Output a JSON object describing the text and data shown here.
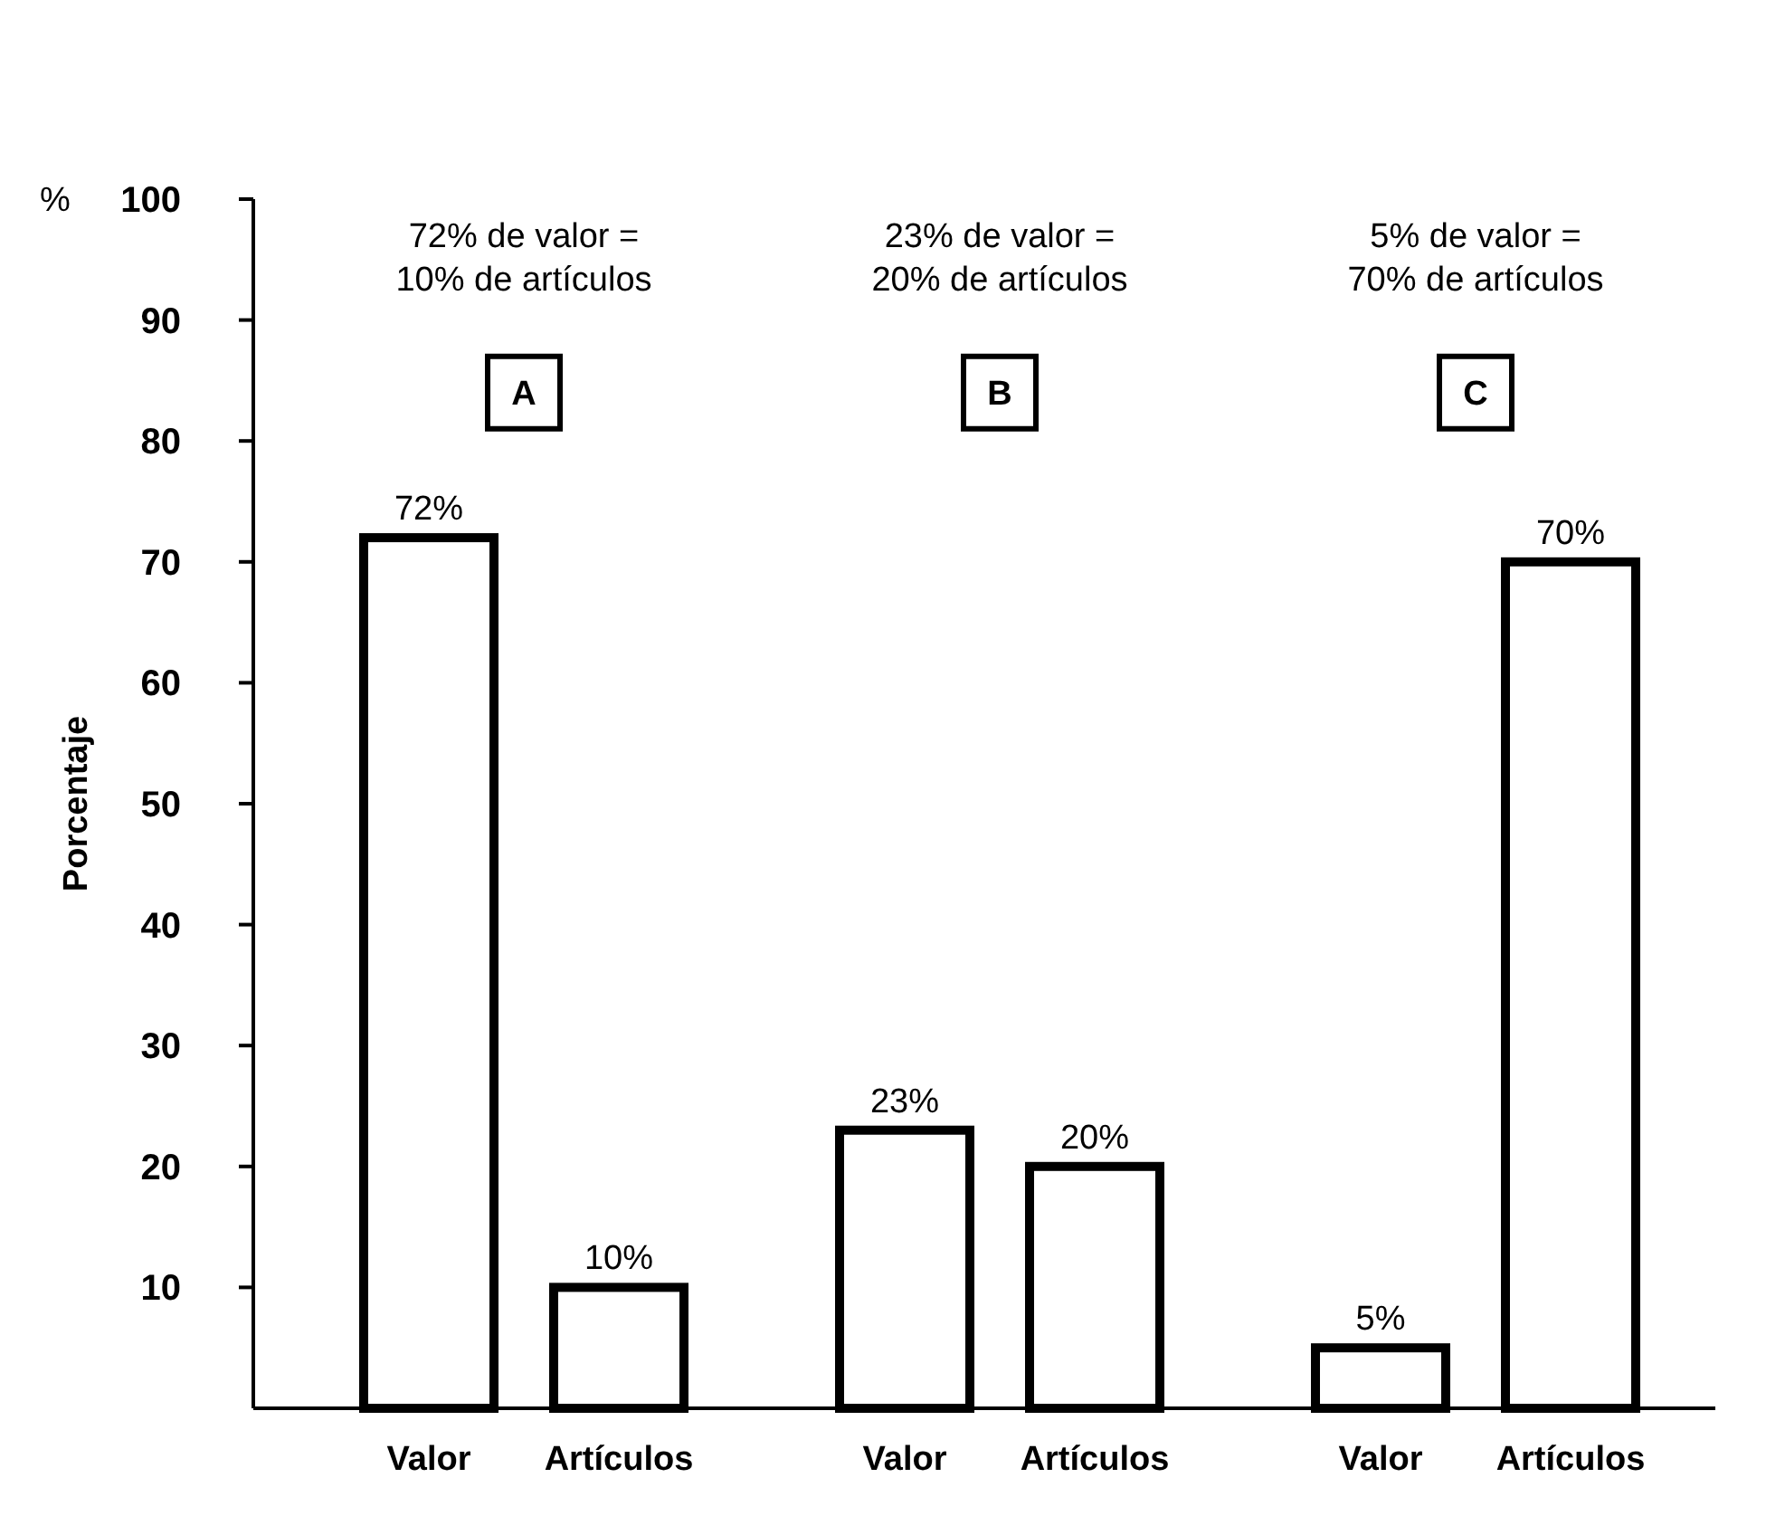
{
  "chart_data": {
    "type": "bar",
    "ylabel": "Porcentaje",
    "categories": [
      "Valor",
      "Artículos",
      "Valor",
      "Artículos",
      "Valor",
      "Artículos"
    ],
    "values": [
      72,
      10,
      23,
      20,
      5,
      70
    ],
    "value_labels": [
      "72%",
      "10%",
      "23%",
      "20%",
      "5%",
      "70%"
    ],
    "color": "#ffffff",
    "ylim": [
      0,
      100
    ],
    "yticks": [
      10,
      20,
      30,
      40,
      50,
      60,
      70,
      80,
      90,
      100
    ],
    "grid": false,
    "annotations": [
      "%",
      "72% de valor =\n10% de artículos",
      "A",
      "23% de valor =\n20% de artículos",
      "B",
      "5% de valor =\n70% de artículos",
      "C"
    ]
  }
}
